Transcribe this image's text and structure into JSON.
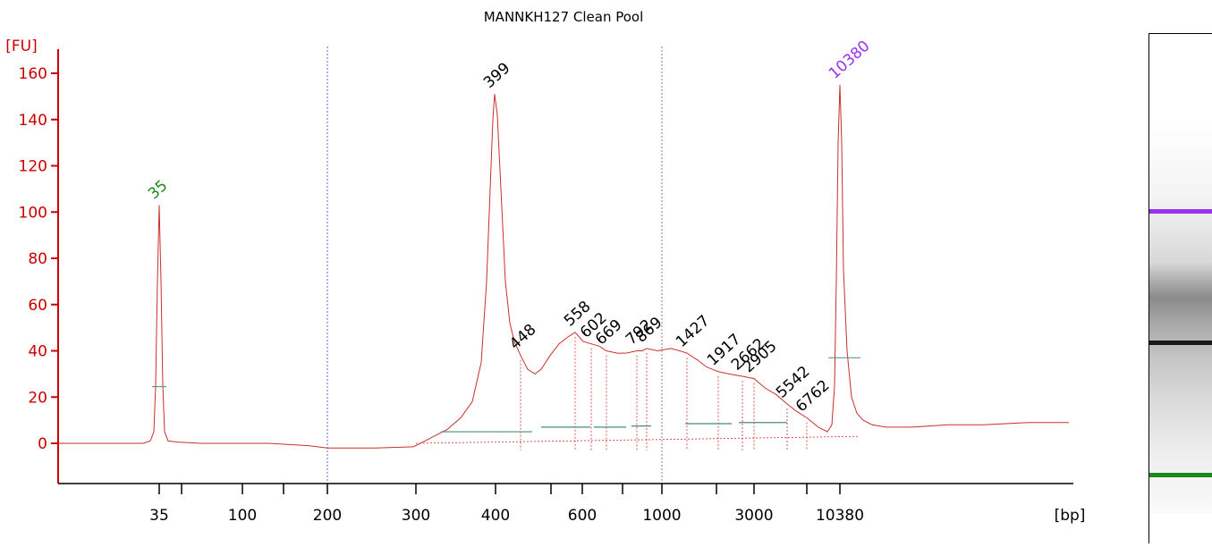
{
  "chart_data": {
    "type": "line",
    "title": "MANNKH127 Clean Pool",
    "ylabel": "[FU]",
    "xlabel": "[bp]",
    "ylim": [
      -18,
      168
    ],
    "y_ticks": [
      0,
      20,
      40,
      60,
      80,
      100,
      120,
      140,
      160
    ],
    "x_ticks": [
      "35",
      "100",
      "200",
      "300",
      "400",
      "600",
      "1000",
      "3000",
      "10380"
    ],
    "peaks": [
      {
        "label": "35",
        "type": "marker",
        "fu": 103,
        "color": "#1a8a1a"
      },
      {
        "label": "399",
        "type": "sample",
        "fu": 151
      },
      {
        "label": "448",
        "type": "sample",
        "fu": 38
      },
      {
        "label": "558",
        "type": "sample",
        "fu": 48
      },
      {
        "label": "602",
        "type": "sample",
        "fu": 43
      },
      {
        "label": "669",
        "type": "sample",
        "fu": 40
      },
      {
        "label": "792",
        "type": "sample",
        "fu": 40
      },
      {
        "label": "869",
        "type": "sample",
        "fu": 41
      },
      {
        "label": "1427",
        "type": "sample",
        "fu": 39
      },
      {
        "label": "1917",
        "type": "sample",
        "fu": 31
      },
      {
        "label": "2662",
        "type": "sample",
        "fu": 29
      },
      {
        "label": "2905",
        "type": "sample",
        "fu": 28
      },
      {
        "label": "5542",
        "type": "sample",
        "fu": 17
      },
      {
        "label": "6762",
        "type": "sample",
        "fu": 11
      },
      {
        "label": "10380",
        "type": "marker",
        "fu": 155,
        "color": "#9933ee"
      }
    ],
    "grid": false,
    "legend": "none"
  },
  "colors": {
    "axis": "#cc0000",
    "trace": "#c8302c",
    "baseline": "#4a8a80",
    "ladder_upper": "#9933ee",
    "ladder_lower": "#1a8a1a",
    "guide": "#6666cc"
  }
}
